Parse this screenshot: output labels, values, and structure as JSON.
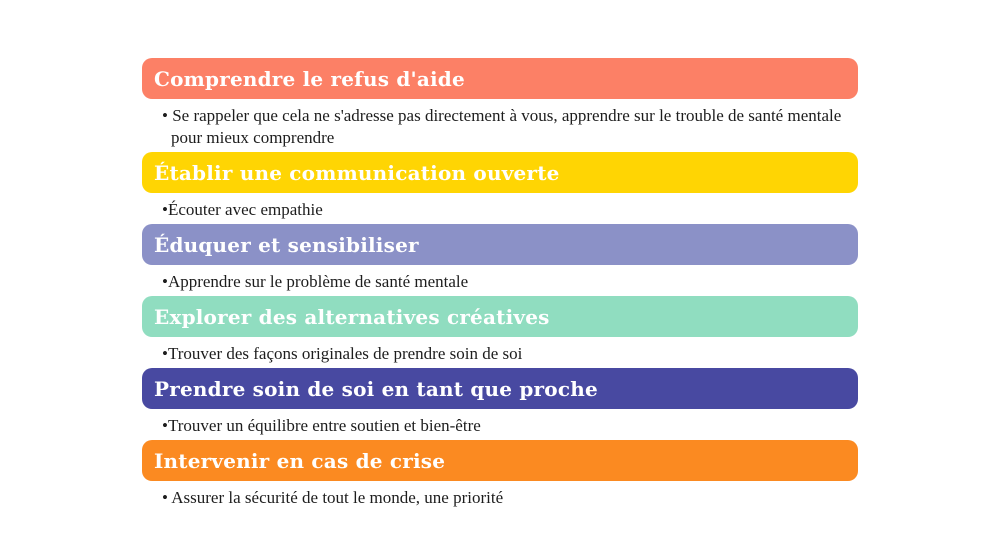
{
  "page": {
    "background_color": "#ffffff",
    "heading_text_color": "#ffffff",
    "body_text_color": "#1d1d1d"
  },
  "sections": [
    {
      "title": "Comprendre le refus d'aide",
      "color": "#FC8066",
      "bullet": "• Se rappeler que cela ne s'adresse pas directement à vous, apprendre sur le trouble de santé mentale pour mieux comprendre"
    },
    {
      "title": "Établir une communication ouverte",
      "color": "#FFD503",
      "bullet": "•Écouter avec empathie"
    },
    {
      "title": "Éduquer et sensibiliser",
      "color": "#8B91C7",
      "bullet": "•Apprendre sur le problème de santé mentale"
    },
    {
      "title": "Explorer des alternatives créatives",
      "color": "#90DDC0",
      "bullet": "•Trouver des façons originales de prendre soin de soi"
    },
    {
      "title": "Prendre soin de soi en tant que proche",
      "color": "#4849A1",
      "bullet": "•Trouver un équilibre entre soutien et bien-être"
    },
    {
      "title": "Intervenir en cas de crise",
      "color": "#FB8A21",
      "bullet": "• Assurer la sécurité de tout le monde, une priorité"
    }
  ]
}
